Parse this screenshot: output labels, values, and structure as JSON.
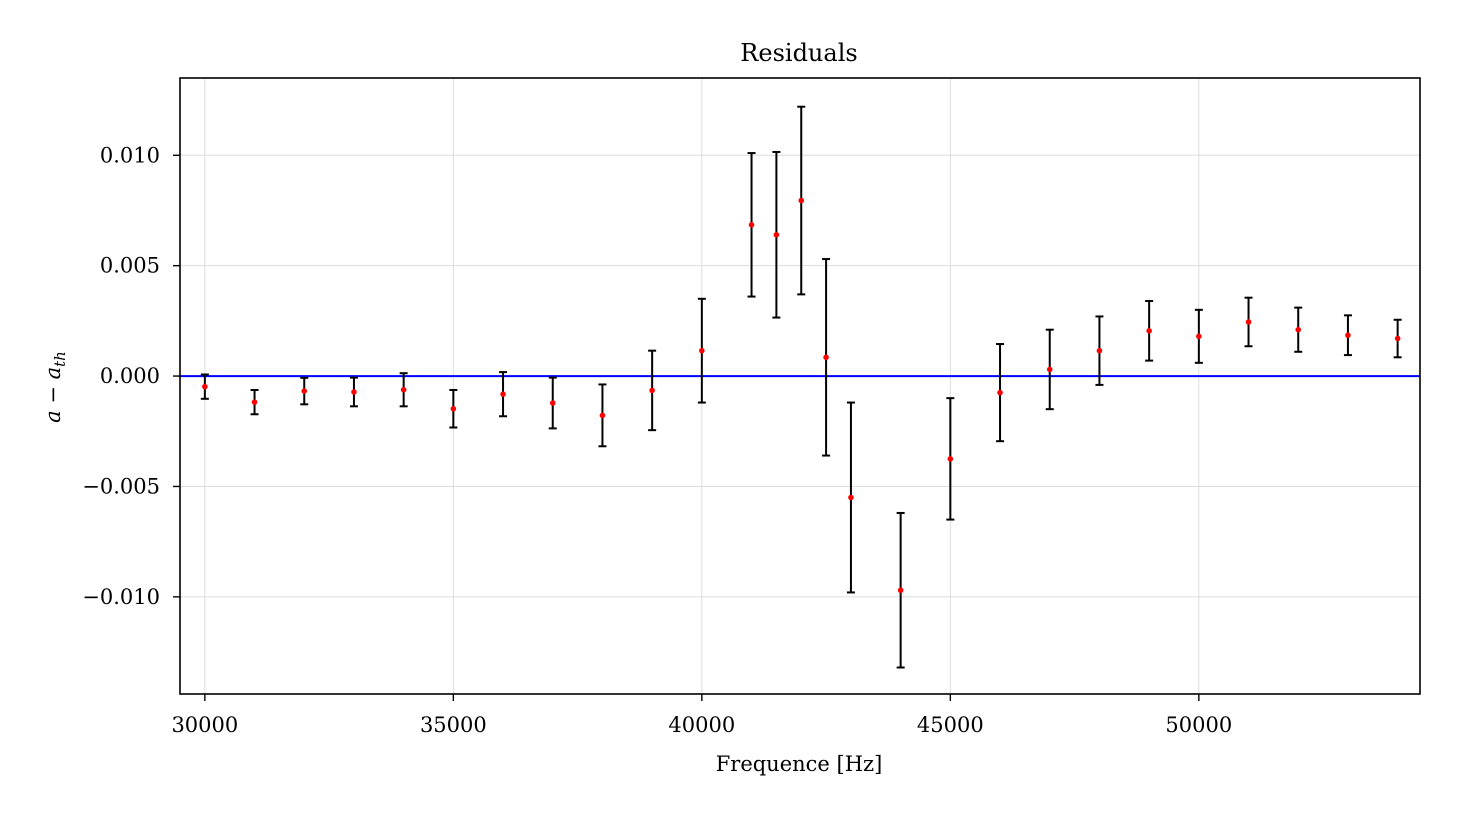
{
  "chart_data": {
    "type": "scatter",
    "title": "Residuals",
    "xlabel": "Frequence [Hz]",
    "ylabel": "a − a",
    "ylabel_sub": "th",
    "xlim": [
      29500,
      54450
    ],
    "ylim": [
      -0.0144,
      0.0135
    ],
    "xticks": [
      30000,
      35000,
      40000,
      45000,
      50000
    ],
    "xtick_labels": [
      "30000",
      "35000",
      "40000",
      "45000",
      "50000"
    ],
    "yticks": [
      0.01,
      0.005,
      0.0,
      -0.005,
      -0.01
    ],
    "ytick_labels": [
      "0.010",
      "0.005",
      "0.000",
      "−0.005",
      "−0.010"
    ],
    "grid": true,
    "reference_line": {
      "y": 0.0,
      "color": "#0000ff"
    },
    "colors": {
      "points": "#ff0000",
      "errorbars": "#000000",
      "grid": "#dddddd",
      "frame": "#000000"
    },
    "series": [
      {
        "x": [
          30000,
          31000,
          32000,
          33000,
          34000,
          35000,
          36000,
          37000,
          38000,
          39000,
          40000,
          41000,
          41500,
          42000,
          42500,
          43000,
          44000,
          45000,
          46000,
          47000,
          48000,
          49000,
          50000,
          51000,
          52000,
          53000,
          54000
        ],
        "y": [
          -0.00048,
          -0.00118,
          -0.00068,
          -0.00072,
          -0.00062,
          -0.00148,
          -0.00082,
          -0.00122,
          -0.00178,
          -0.00065,
          0.00115,
          0.00685,
          0.0064,
          0.00795,
          0.00085,
          -0.0055,
          -0.0097,
          -0.00375,
          -0.00075,
          0.0003,
          0.00115,
          0.00205,
          0.0018,
          0.00245,
          0.0021,
          0.00185,
          0.0017
        ],
        "yerr": [
          0.00055,
          0.00055,
          0.0006,
          0.00065,
          0.00075,
          0.00085,
          0.001,
          0.00115,
          0.0014,
          0.0018,
          0.00235,
          0.00325,
          0.00375,
          0.00425,
          0.00445,
          0.0043,
          0.0035,
          0.00275,
          0.0022,
          0.0018,
          0.00155,
          0.00135,
          0.0012,
          0.0011,
          0.001,
          0.0009,
          0.00085
        ]
      }
    ]
  }
}
